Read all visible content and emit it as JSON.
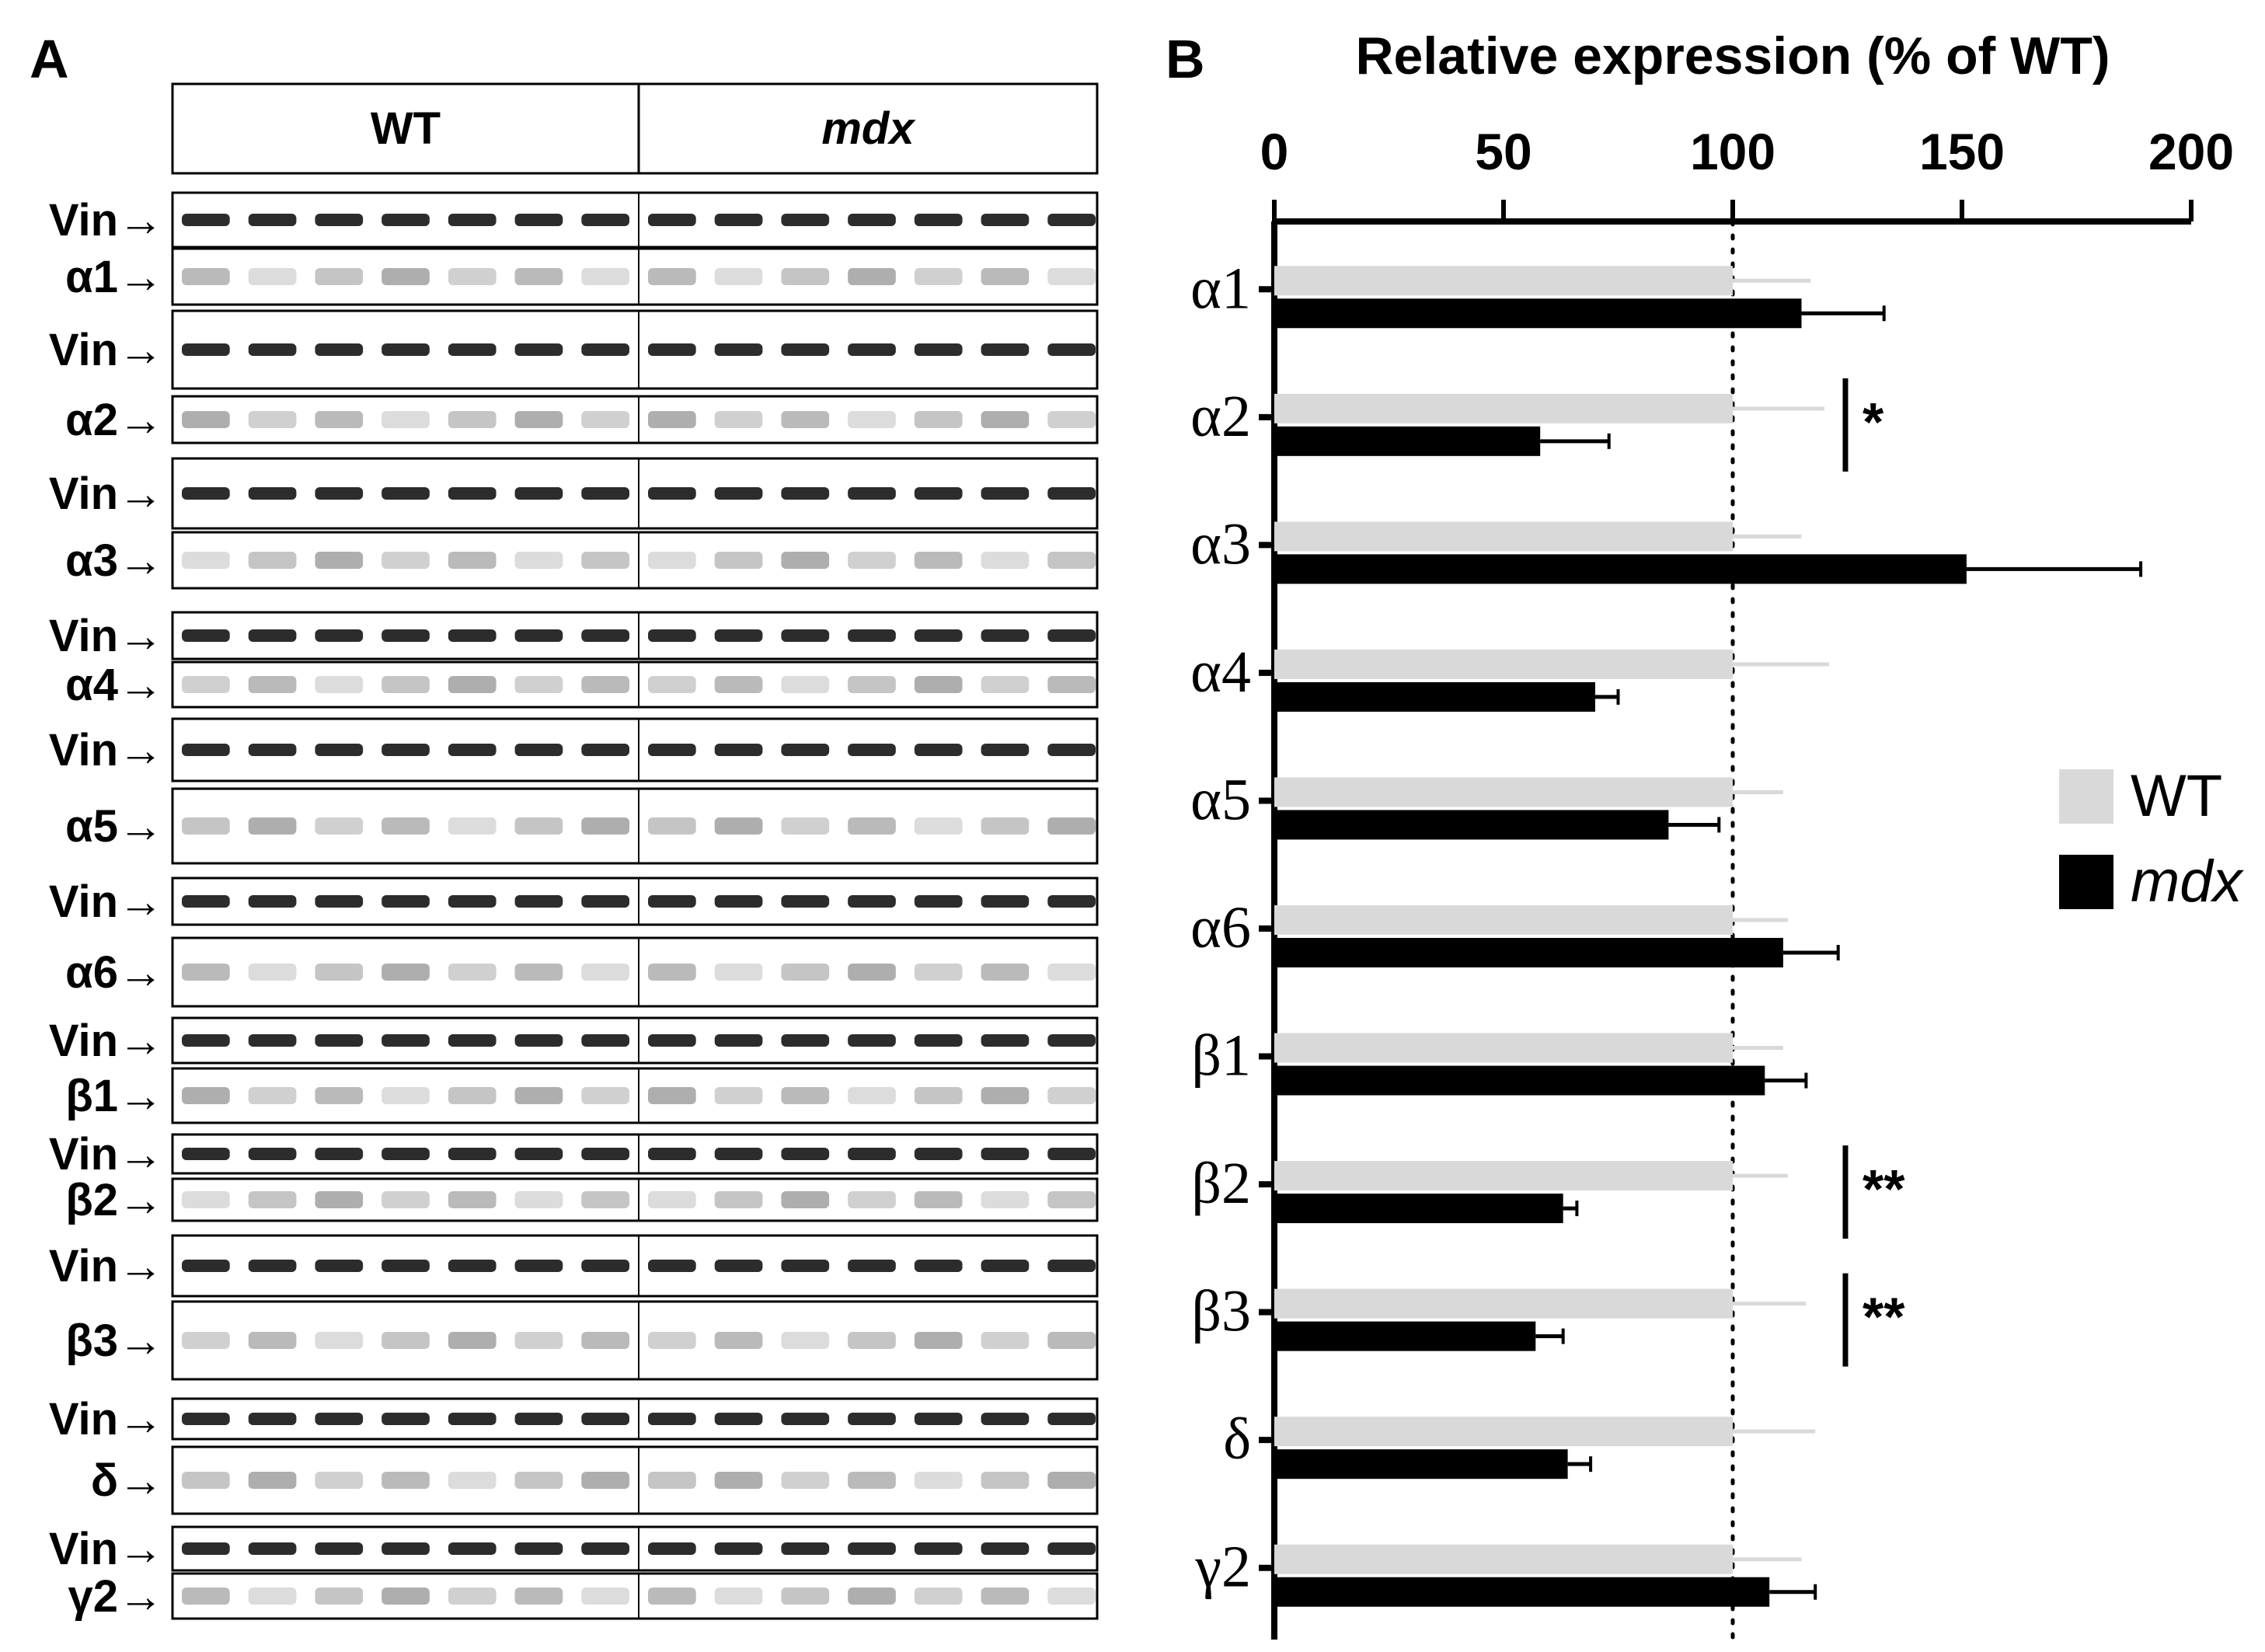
{
  "panel_a": {
    "letter": "A",
    "group_labels": [
      "WT",
      "mdx"
    ],
    "lanes_per_group": 7,
    "blots": [
      {
        "label": "Vin→"
      },
      {
        "label": "α1→"
      },
      {
        "label": "Vin→"
      },
      {
        "label": "α2→"
      },
      {
        "label": "Vin→"
      },
      {
        "label": "α3→"
      },
      {
        "label": "Vin→"
      },
      {
        "label": "α4→"
      },
      {
        "label": "Vin→"
      },
      {
        "label": "α5→"
      },
      {
        "label": "Vin→"
      },
      {
        "label": "α6→"
      },
      {
        "label": "Vin→"
      },
      {
        "label": "β1→"
      },
      {
        "label": "Vin→"
      },
      {
        "label": "β2→"
      },
      {
        "label": "Vin→"
      },
      {
        "label": "β3→"
      },
      {
        "label": "Vin→"
      },
      {
        "label": "δ→"
      },
      {
        "label": "Vin→"
      },
      {
        "label": "γ2→"
      }
    ],
    "colors": {
      "band_strong": "#1a1a1a",
      "band_weak": "#9a9a9a",
      "frame": "#000000"
    }
  },
  "panel_b": {
    "letter": "B"
  },
  "chart_data": {
    "type": "bar",
    "orientation": "horizontal",
    "xlabel": "Relative expression (% of WT)",
    "xlim": [
      0,
      200
    ],
    "xticks": [
      0,
      50,
      100,
      150,
      200
    ],
    "reference_line": 100,
    "categories": [
      "α1",
      "α2",
      "α3",
      "α4",
      "α5",
      "α6",
      "β1",
      "β2",
      "β3",
      "δ",
      "γ2"
    ],
    "series": [
      {
        "name": "WT",
        "color": "#d9d9d9",
        "values": [
          100,
          100,
          100,
          100,
          100,
          100,
          100,
          100,
          100,
          100,
          100
        ],
        "errors": [
          17,
          20,
          15,
          21,
          11,
          12,
          11,
          12,
          16,
          18,
          15
        ]
      },
      {
        "name": "mdx",
        "color": "#000000",
        "values": [
          115,
          58,
          151,
          70,
          86,
          111,
          107,
          63,
          57,
          64,
          108
        ],
        "errors": [
          18,
          15,
          38,
          5,
          11,
          12,
          9,
          3,
          6,
          5,
          10
        ]
      }
    ],
    "significance": [
      {
        "category": "α2",
        "label": "*"
      },
      {
        "category": "β2",
        "label": "**"
      },
      {
        "category": "β3",
        "label": "**"
      }
    ],
    "legend": {
      "position": "right",
      "entries": [
        "WT",
        "mdx"
      ]
    }
  }
}
